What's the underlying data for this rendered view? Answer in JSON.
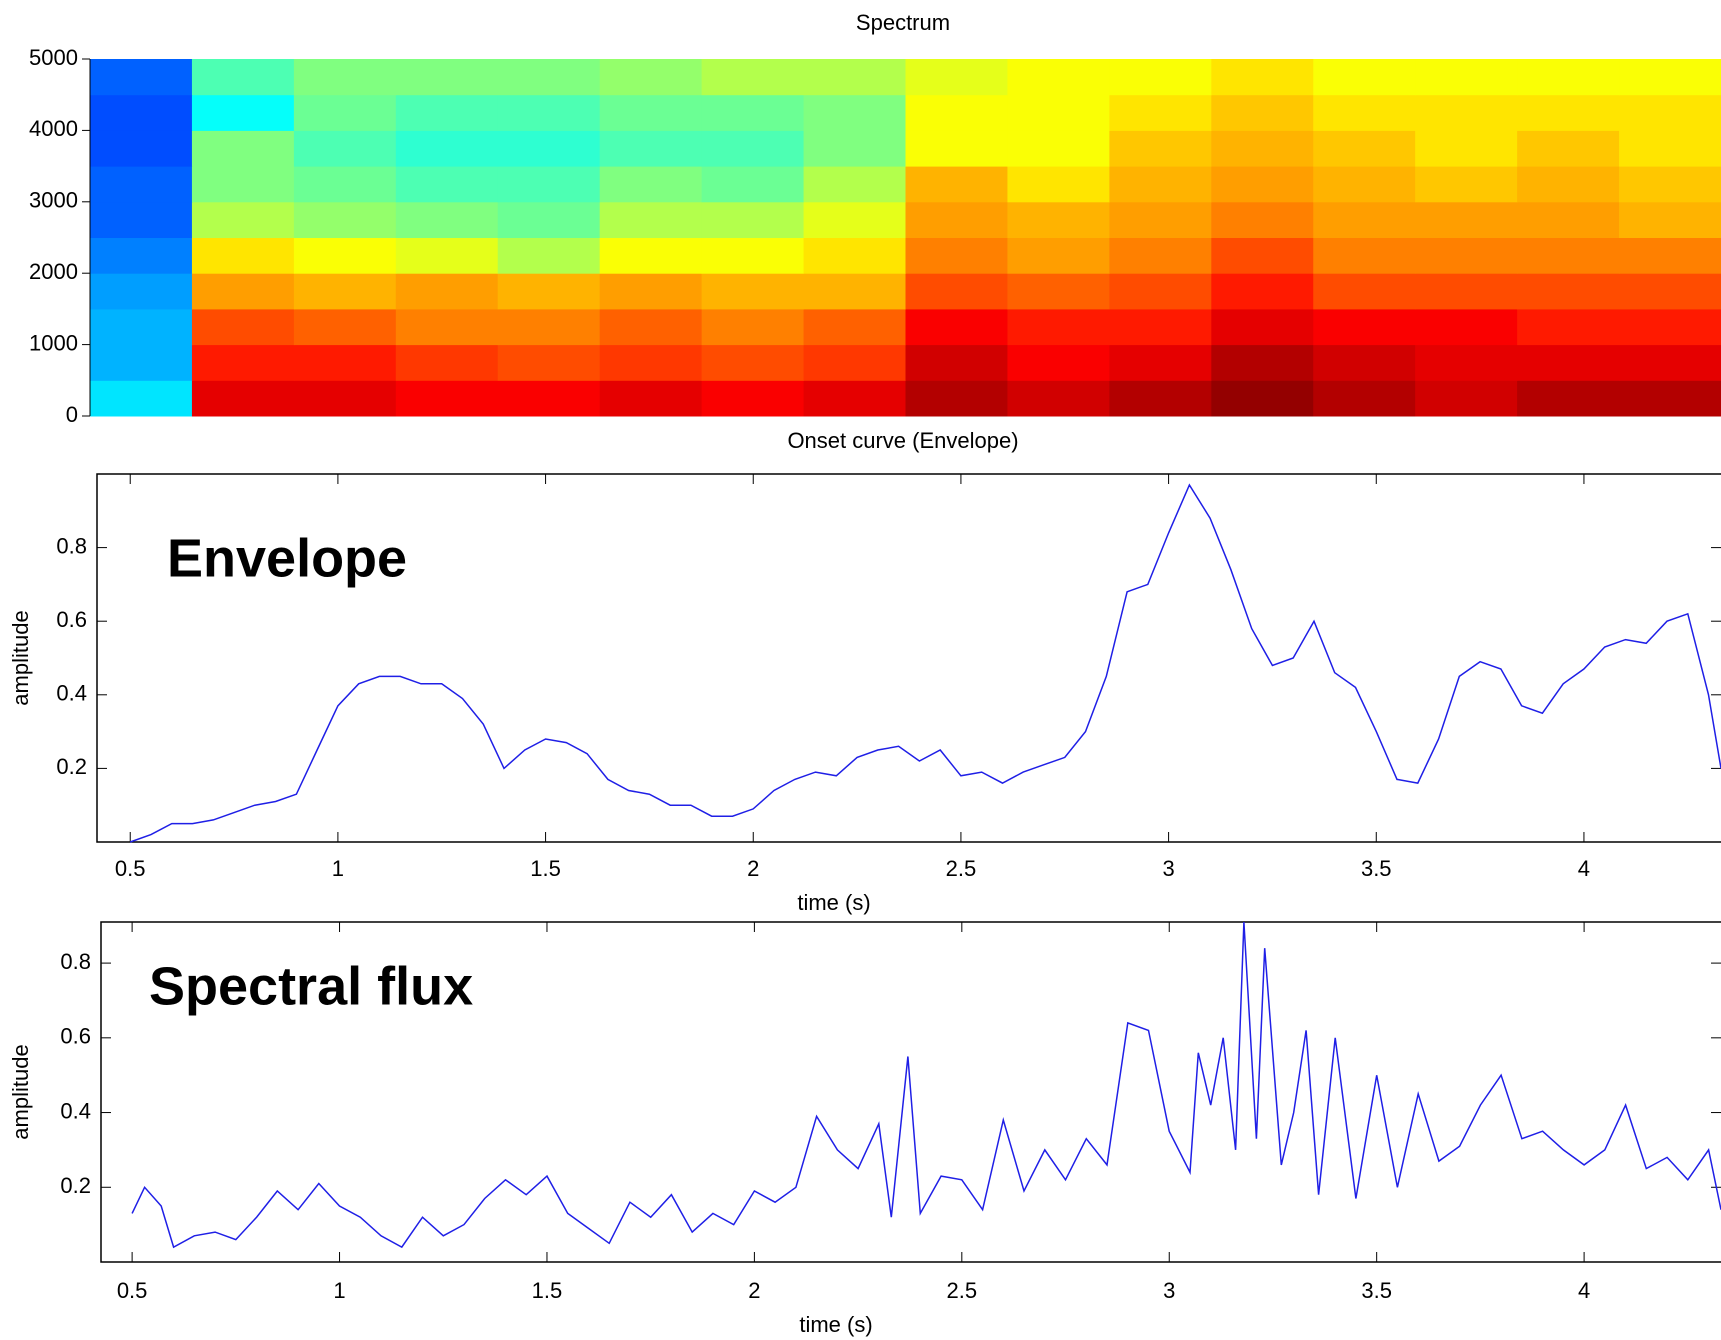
{
  "chart_data": [
    {
      "type": "spectrogram",
      "title": "Spectrum",
      "ylim": [
        0,
        5000
      ],
      "yticks": [
        0,
        1000,
        2000,
        3000,
        4000,
        5000
      ],
      "z": [
        [
          0.35,
          0.9,
          0.9,
          0.88,
          0.88,
          0.9,
          0.88,
          0.9,
          0.95,
          0.92,
          0.95,
          0.98,
          0.95,
          0.92,
          0.95,
          0.95
        ],
        [
          0.3,
          0.85,
          0.85,
          0.82,
          0.8,
          0.82,
          0.8,
          0.82,
          0.92,
          0.88,
          0.9,
          0.95,
          0.92,
          0.9,
          0.9,
          0.9
        ],
        [
          0.3,
          0.8,
          0.78,
          0.75,
          0.75,
          0.78,
          0.75,
          0.78,
          0.88,
          0.85,
          0.85,
          0.9,
          0.88,
          0.88,
          0.85,
          0.85
        ],
        [
          0.28,
          0.72,
          0.7,
          0.72,
          0.7,
          0.72,
          0.7,
          0.7,
          0.8,
          0.78,
          0.8,
          0.85,
          0.8,
          0.8,
          0.8,
          0.8
        ],
        [
          0.25,
          0.65,
          0.62,
          0.6,
          0.55,
          0.62,
          0.62,
          0.65,
          0.75,
          0.72,
          0.75,
          0.8,
          0.75,
          0.75,
          0.75,
          0.75
        ],
        [
          0.22,
          0.55,
          0.52,
          0.5,
          0.48,
          0.55,
          0.55,
          0.6,
          0.72,
          0.7,
          0.72,
          0.75,
          0.72,
          0.72,
          0.72,
          0.7
        ],
        [
          0.22,
          0.5,
          0.48,
          0.45,
          0.45,
          0.5,
          0.48,
          0.55,
          0.7,
          0.65,
          0.7,
          0.72,
          0.7,
          0.68,
          0.7,
          0.68
        ],
        [
          0.2,
          0.5,
          0.45,
          0.42,
          0.42,
          0.45,
          0.45,
          0.5,
          0.62,
          0.62,
          0.68,
          0.7,
          0.68,
          0.65,
          0.68,
          0.65
        ],
        [
          0.2,
          0.38,
          0.48,
          0.45,
          0.45,
          0.48,
          0.48,
          0.5,
          0.62,
          0.62,
          0.65,
          0.68,
          0.65,
          0.65,
          0.65,
          0.65
        ],
        [
          0.22,
          0.45,
          0.5,
          0.5,
          0.5,
          0.52,
          0.55,
          0.55,
          0.6,
          0.62,
          0.62,
          0.65,
          0.62,
          0.62,
          0.62,
          0.62
        ]
      ]
    },
    {
      "type": "line",
      "title": "Onset curve (Envelope)",
      "annotation": "Envelope",
      "xlabel": "time (s)",
      "ylabel": "amplitude",
      "color": "#1f1fe6",
      "xlim": [
        0.42,
        4.33
      ],
      "ylim": [
        0,
        1.0
      ],
      "xticks": [
        0.5,
        1,
        1.5,
        2,
        2.5,
        3,
        3.5,
        4
      ],
      "yticks": [
        0.2,
        0.4,
        0.6,
        0.8
      ],
      "x": [
        0.5,
        0.55,
        0.6,
        0.65,
        0.7,
        0.75,
        0.8,
        0.85,
        0.9,
        0.95,
        1.0,
        1.05,
        1.1,
        1.15,
        1.2,
        1.25,
        1.3,
        1.35,
        1.4,
        1.45,
        1.5,
        1.55,
        1.6,
        1.65,
        1.7,
        1.75,
        1.8,
        1.85,
        1.9,
        1.95,
        2.0,
        2.05,
        2.1,
        2.15,
        2.2,
        2.25,
        2.3,
        2.35,
        2.4,
        2.45,
        2.5,
        2.55,
        2.6,
        2.65,
        2.7,
        2.75,
        2.8,
        2.85,
        2.9,
        2.95,
        3.0,
        3.05,
        3.1,
        3.15,
        3.2,
        3.25,
        3.3,
        3.35,
        3.4,
        3.45,
        3.5,
        3.55,
        3.6,
        3.65,
        3.7,
        3.75,
        3.8,
        3.85,
        3.9,
        3.95,
        4.0,
        4.05,
        4.1,
        4.15,
        4.2,
        4.25,
        4.3,
        4.33
      ],
      "values": [
        0.0,
        0.02,
        0.05,
        0.05,
        0.06,
        0.08,
        0.1,
        0.11,
        0.13,
        0.25,
        0.37,
        0.43,
        0.45,
        0.45,
        0.43,
        0.43,
        0.39,
        0.32,
        0.2,
        0.25,
        0.28,
        0.27,
        0.24,
        0.17,
        0.14,
        0.13,
        0.1,
        0.1,
        0.07,
        0.07,
        0.09,
        0.14,
        0.17,
        0.19,
        0.18,
        0.23,
        0.25,
        0.26,
        0.22,
        0.25,
        0.18,
        0.19,
        0.16,
        0.19,
        0.21,
        0.23,
        0.3,
        0.45,
        0.68,
        0.7,
        0.84,
        0.97,
        0.88,
        0.74,
        0.58,
        0.48,
        0.5,
        0.6,
        0.46,
        0.42,
        0.3,
        0.17,
        0.16,
        0.28,
        0.45,
        0.49,
        0.47,
        0.37,
        0.35,
        0.43,
        0.47,
        0.53,
        0.55,
        0.54,
        0.6,
        0.62,
        0.4,
        0.2
      ]
    },
    {
      "type": "line",
      "annotation": "Spectral flux",
      "xlabel": "time (s)",
      "ylabel": "amplitude",
      "color": "#1f1fe6",
      "xlim": [
        0.425,
        4.33
      ],
      "ylim": [
        0,
        0.91
      ],
      "xticks": [
        0.5,
        1,
        1.5,
        2,
        2.5,
        3,
        3.5,
        4
      ],
      "yticks": [
        0.2,
        0.4,
        0.6,
        0.8
      ],
      "x": [
        0.5,
        0.53,
        0.57,
        0.6,
        0.65,
        0.7,
        0.75,
        0.8,
        0.85,
        0.9,
        0.95,
        1.0,
        1.05,
        1.1,
        1.15,
        1.2,
        1.25,
        1.3,
        1.35,
        1.4,
        1.45,
        1.5,
        1.55,
        1.6,
        1.65,
        1.7,
        1.75,
        1.8,
        1.85,
        1.9,
        1.95,
        2.0,
        2.05,
        2.1,
        2.15,
        2.2,
        2.25,
        2.3,
        2.33,
        2.37,
        2.4,
        2.45,
        2.5,
        2.55,
        2.6,
        2.65,
        2.7,
        2.75,
        2.8,
        2.85,
        2.9,
        2.95,
        3.0,
        3.05,
        3.07,
        3.1,
        3.13,
        3.16,
        3.18,
        3.21,
        3.23,
        3.27,
        3.3,
        3.33,
        3.36,
        3.4,
        3.45,
        3.5,
        3.55,
        3.6,
        3.65,
        3.7,
        3.75,
        3.8,
        3.85,
        3.9,
        3.95,
        4.0,
        4.05,
        4.1,
        4.15,
        4.2,
        4.25,
        4.3,
        4.33
      ],
      "values": [
        0.13,
        0.2,
        0.15,
        0.04,
        0.07,
        0.08,
        0.06,
        0.12,
        0.19,
        0.14,
        0.21,
        0.15,
        0.12,
        0.07,
        0.04,
        0.12,
        0.07,
        0.1,
        0.17,
        0.22,
        0.18,
        0.23,
        0.13,
        0.09,
        0.05,
        0.16,
        0.12,
        0.18,
        0.08,
        0.13,
        0.1,
        0.19,
        0.16,
        0.2,
        0.39,
        0.3,
        0.25,
        0.37,
        0.12,
        0.55,
        0.13,
        0.23,
        0.22,
        0.14,
        0.38,
        0.19,
        0.3,
        0.22,
        0.33,
        0.26,
        0.64,
        0.62,
        0.35,
        0.24,
        0.56,
        0.42,
        0.6,
        0.3,
        0.91,
        0.33,
        0.84,
        0.26,
        0.4,
        0.62,
        0.18,
        0.6,
        0.17,
        0.5,
        0.2,
        0.45,
        0.27,
        0.31,
        0.42,
        0.5,
        0.33,
        0.35,
        0.3,
        0.26,
        0.3,
        0.42,
        0.25,
        0.28,
        0.22,
        0.3,
        0.14
      ]
    }
  ]
}
